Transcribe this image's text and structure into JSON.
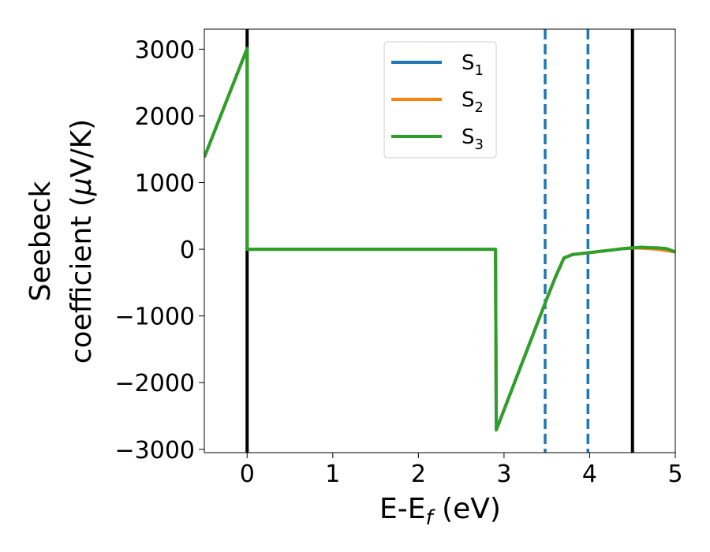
{
  "chart_data": {
    "type": "line",
    "title": "",
    "xlabel": "E-E",
    "xlabel_sub": "f",
    "xlabel_unit": " (eV)",
    "ylabel_line1": "Seebeck",
    "ylabel_line2": "coefficient  (",
    "ylabel_mu": "μ",
    "ylabel_unit": "V/K)",
    "xlim": [
      -0.5,
      5
    ],
    "ylim": [
      -3050,
      3300
    ],
    "xticks": [
      0,
      1,
      2,
      3,
      4,
      5
    ],
    "xtick_labels": [
      "0",
      "1",
      "2",
      "3",
      "4",
      "5"
    ],
    "yticks": [
      -3000,
      -2000,
      -1000,
      0,
      1000,
      2000,
      3000
    ],
    "ytick_labels": [
      "−3000",
      "−2000",
      "−1000",
      "0",
      "1000",
      "2000",
      "3000"
    ],
    "grid": false,
    "legend_position": "top-center",
    "vertical_lines": [
      {
        "x": 0,
        "style": "solid",
        "color": "#000000"
      },
      {
        "x": 4.5,
        "style": "solid",
        "color": "#000000"
      },
      {
        "x": 3.48,
        "style": "dashed",
        "color": "#1f77b4"
      },
      {
        "x": 3.98,
        "style": "dashed",
        "color": "#1f77b4"
      }
    ],
    "series": [
      {
        "name": "S",
        "subscript": "1",
        "color": "#1f77b4",
        "x": [
          -0.5,
          0,
          0.001,
          2.9,
          2.91,
          3.5,
          3.6,
          3.7,
          3.8,
          4.0,
          4.2,
          4.4,
          4.5,
          4.6,
          4.7,
          4.8,
          4.9,
          5.0
        ],
        "y": [
          1380,
          3010,
          0,
          0,
          -2710,
          -740,
          -420,
          -130,
          -80,
          -50,
          -20,
          10,
          20,
          25,
          20,
          10,
          -10,
          -40
        ]
      },
      {
        "name": "S",
        "subscript": "2",
        "color": "#ff7f0e",
        "x": [
          -0.5,
          0,
          0.001,
          2.9,
          2.91,
          3.5,
          3.6,
          3.7,
          3.8,
          4.0,
          4.2,
          4.4,
          4.5,
          4.6,
          4.7,
          4.8,
          4.9,
          5.0
        ],
        "y": [
          1380,
          3010,
          0,
          0,
          -2710,
          -740,
          -420,
          -130,
          -80,
          -50,
          -20,
          10,
          20,
          15,
          10,
          0,
          -20,
          -40
        ]
      },
      {
        "name": "S",
        "subscript": "3",
        "color": "#2ca02c",
        "x": [
          -0.5,
          0,
          0.001,
          2.9,
          2.91,
          3.5,
          3.6,
          3.7,
          3.8,
          4.0,
          4.2,
          4.4,
          4.5,
          4.6,
          4.7,
          4.8,
          4.9,
          5.0
        ],
        "y": [
          1380,
          3010,
          0,
          0,
          -2710,
          -740,
          -420,
          -130,
          -80,
          -50,
          -20,
          10,
          20,
          30,
          25,
          20,
          10,
          -40
        ]
      }
    ]
  }
}
